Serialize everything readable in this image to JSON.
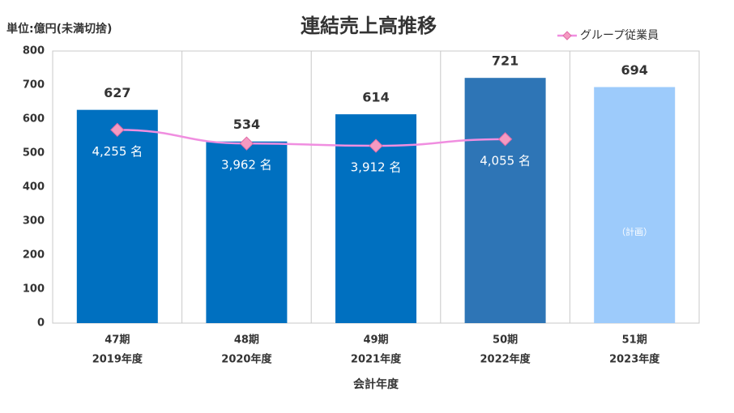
{
  "chart_data": {
    "type": "bar",
    "title": "連結売上高推移",
    "subtitle": "単位:億円(未満切捨)",
    "x_label": "会計年度",
    "categories": [
      [
        "47期",
        "2019年度"
      ],
      [
        "48期",
        "2020年度"
      ],
      [
        "49期",
        "2021年度"
      ],
      [
        "50期",
        "2022年度"
      ],
      [
        "51期",
        "2023年度"
      ]
    ],
    "values": [
      627,
      534,
      614,
      721,
      694
    ],
    "colors": [
      "#0070c0",
      "#0070c0",
      "#0070c0",
      "#2e75b6",
      "#9dcbfb"
    ],
    "annotation": "（計画）",
    "ylim": [
      0,
      800
    ],
    "yticks": [
      0,
      100,
      200,
      300,
      400,
      500,
      600,
      700,
      800
    ],
    "y2lim": [
      100,
      5950
    ],
    "series": [
      {
        "name": "グループ従業員",
        "type": "line",
        "axis": "y2",
        "color": "#f08ee0",
        "marker_color": "#f49ac1",
        "values": [
          4255,
          3962,
          3912,
          4055,
          null
        ],
        "value_labels": [
          "4,255 名",
          "3,962 名",
          "3,912 名",
          "4,055 名",
          null
        ]
      }
    ],
    "legend": "top-right"
  }
}
